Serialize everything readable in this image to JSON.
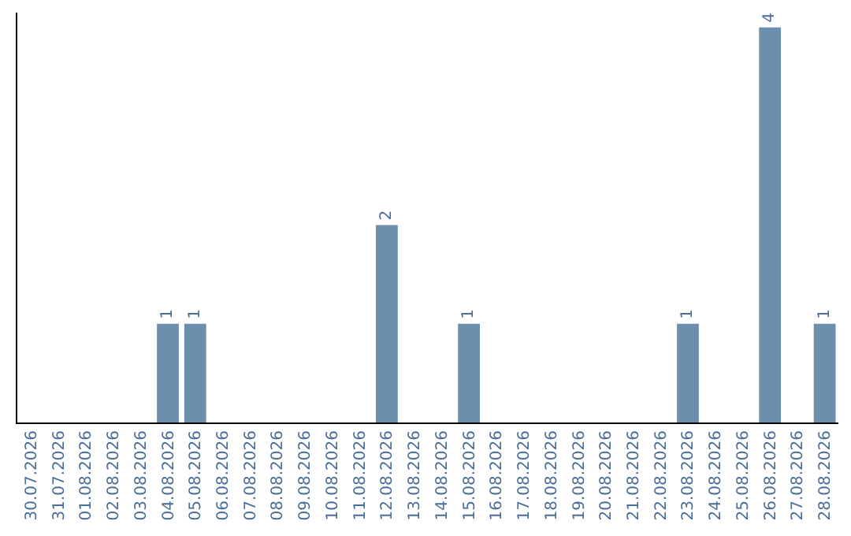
{
  "chart_data": {
    "type": "bar",
    "categories": [
      "30.07.2026",
      "31.07.2026",
      "01.08.2026",
      "02.08.2026",
      "03.08.2026",
      "04.08.2026",
      "05.08.2026",
      "06.08.2026",
      "07.08.2026",
      "08.08.2026",
      "09.08.2026",
      "10.08.2026",
      "11.08.2026",
      "12.08.2026",
      "13.08.2026",
      "14.08.2026",
      "15.08.2026",
      "16.08.2026",
      "17.08.2026",
      "18.08.2026",
      "19.08.2026",
      "20.08.2026",
      "21.08.2026",
      "22.08.2026",
      "23.08.2026",
      "24.08.2026",
      "25.08.2026",
      "26.08.2026",
      "27.08.2026",
      "28.08.2026"
    ],
    "values": [
      0,
      0,
      0,
      0,
      0,
      1,
      1,
      0,
      0,
      0,
      0,
      0,
      0,
      2,
      0,
      0,
      1,
      0,
      0,
      0,
      0,
      0,
      0,
      0,
      1,
      0,
      0,
      4,
      0,
      1
    ],
    "value_labels": [
      null,
      null,
      null,
      null,
      null,
      "1",
      "1",
      null,
      null,
      null,
      null,
      null,
      null,
      "2",
      null,
      null,
      "1",
      null,
      null,
      null,
      null,
      null,
      null,
      null,
      "1",
      null,
      null,
      "4",
      null,
      "1"
    ],
    "color": "#6d8fad",
    "ylim": [
      0,
      4.15
    ],
    "tick_labels": "x",
    "legend": false
  }
}
